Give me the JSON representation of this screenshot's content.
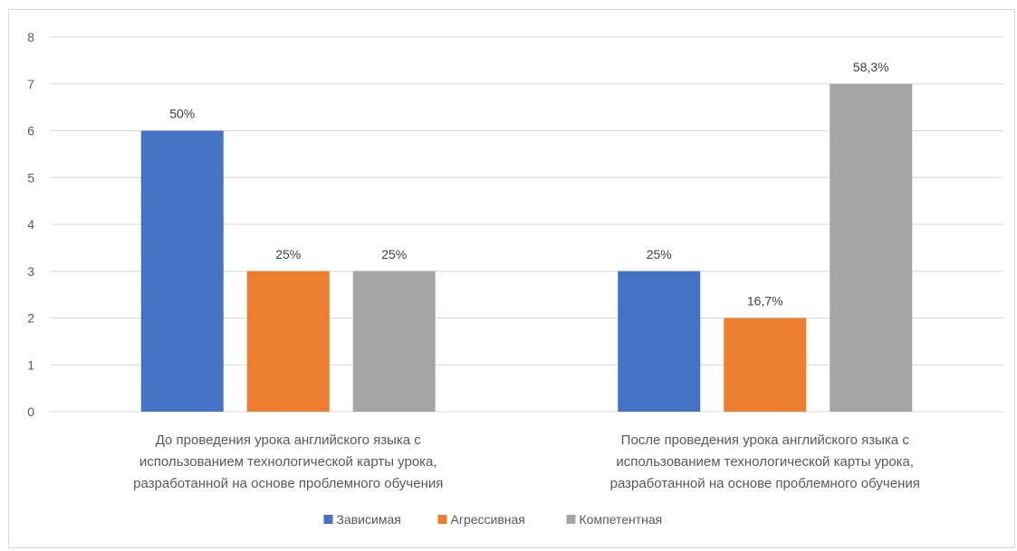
{
  "chart_data": {
    "type": "bar",
    "title": "",
    "xlabel": "",
    "ylabel": "",
    "ylim": [
      0,
      8
    ],
    "yticks": [
      "0",
      "1",
      "2",
      "3",
      "4",
      "5",
      "6",
      "7",
      "8"
    ],
    "categories": [
      [
        "До проведения урока английского языка с",
        "использованием технологической карты урока,",
        "разработанной на основе проблемного обучения"
      ],
      [
        "После проведения урока английского языка с",
        "использованием технологической карты урока,",
        "разработанной на основе проблемного обучения"
      ]
    ],
    "series": [
      {
        "name": "Зависимая",
        "color": "#4472C4",
        "values": [
          6,
          3
        ],
        "labels": [
          "50%",
          "25%"
        ]
      },
      {
        "name": "Агрессивная",
        "color": "#ED7D31",
        "values": [
          3,
          2
        ],
        "labels": [
          "25%",
          "16,7%"
        ]
      },
      {
        "name": "Компетентная",
        "color": "#A5A5A5",
        "values": [
          3,
          7
        ],
        "labels": [
          "25%",
          "58,3%"
        ]
      }
    ],
    "grid": true,
    "legend_position": "bottom"
  }
}
